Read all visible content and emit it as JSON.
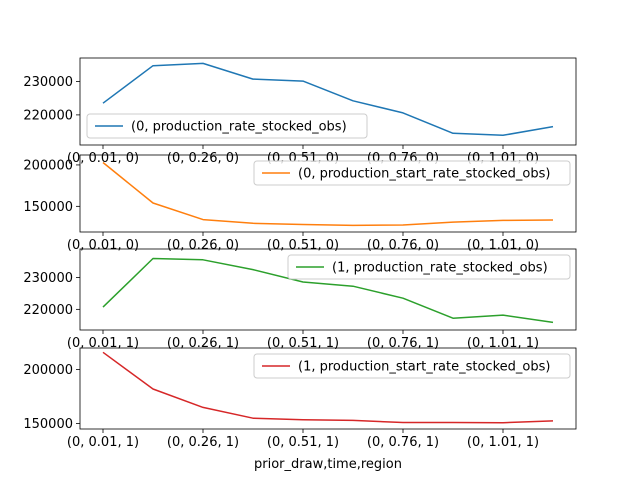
{
  "chart_data": {
    "type": "line",
    "xlabel": "prior_draw,time,region",
    "charts": [
      {
        "series_name": "(0, production_rate_stocked_obs)",
        "color": "#1f77b4",
        "legend_loc": "lower-left",
        "x_tick_labels": [
          "(0, 0.01, 0)",
          "(0, 0.26, 0)",
          "(0, 0.51, 0)",
          "(0, 0.76, 0)",
          "(0, 1.01, 0)"
        ],
        "yticks": [
          220000,
          230000
        ],
        "y_tick_labels": [
          "220000",
          "230000"
        ],
        "ylim": [
          211000,
          237000
        ],
        "values": [
          223500,
          234700,
          235400,
          230700,
          230100,
          224200,
          220600,
          214500,
          213900,
          216500
        ]
      },
      {
        "series_name": "(0, production_start_rate_stocked_obs)",
        "color": "#ff7f0e",
        "legend_loc": "upper-right",
        "x_tick_labels": [
          "(0, 0.01, 0)",
          "(0, 0.26, 0)",
          "(0, 0.51, 0)",
          "(0, 0.76, 0)",
          "(0, 1.01, 0)"
        ],
        "yticks": [
          150000,
          200000
        ],
        "y_tick_labels": [
          "150000",
          "200000"
        ],
        "ylim": [
          119000,
          212000
        ],
        "values": [
          203000,
          154000,
          134000,
          129500,
          128000,
          127000,
          127500,
          131000,
          133000,
          133500
        ]
      },
      {
        "series_name": "(1, production_rate_stocked_obs)",
        "color": "#2ca02c",
        "legend_loc": "upper-right",
        "x_tick_labels": [
          "(0, 0.01, 1)",
          "(0, 0.26, 1)",
          "(0, 0.51, 1)",
          "(0, 0.76, 1)",
          "(0, 1.01, 1)"
        ],
        "yticks": [
          220000,
          230000
        ],
        "y_tick_labels": [
          "220000",
          "230000"
        ],
        "ylim": [
          213500,
          239000
        ],
        "values": [
          220700,
          236000,
          235600,
          232500,
          228600,
          227300,
          223500,
          217200,
          218200,
          215900
        ]
      },
      {
        "series_name": "(1, production_start_rate_stocked_obs)",
        "color": "#d62728",
        "legend_loc": "upper-right",
        "x_tick_labels": [
          "(0, 0.01, 1)",
          "(0, 0.26, 1)",
          "(0, 0.51, 1)",
          "(0, 0.76, 1)",
          "(0, 1.01, 1)"
        ],
        "yticks": [
          150000,
          200000
        ],
        "y_tick_labels": [
          "150000",
          "200000"
        ],
        "ylim": [
          145000,
          220000
        ],
        "values": [
          216000,
          182000,
          165000,
          155000,
          153500,
          153000,
          151000,
          151000,
          150800,
          152500
        ]
      }
    ]
  }
}
